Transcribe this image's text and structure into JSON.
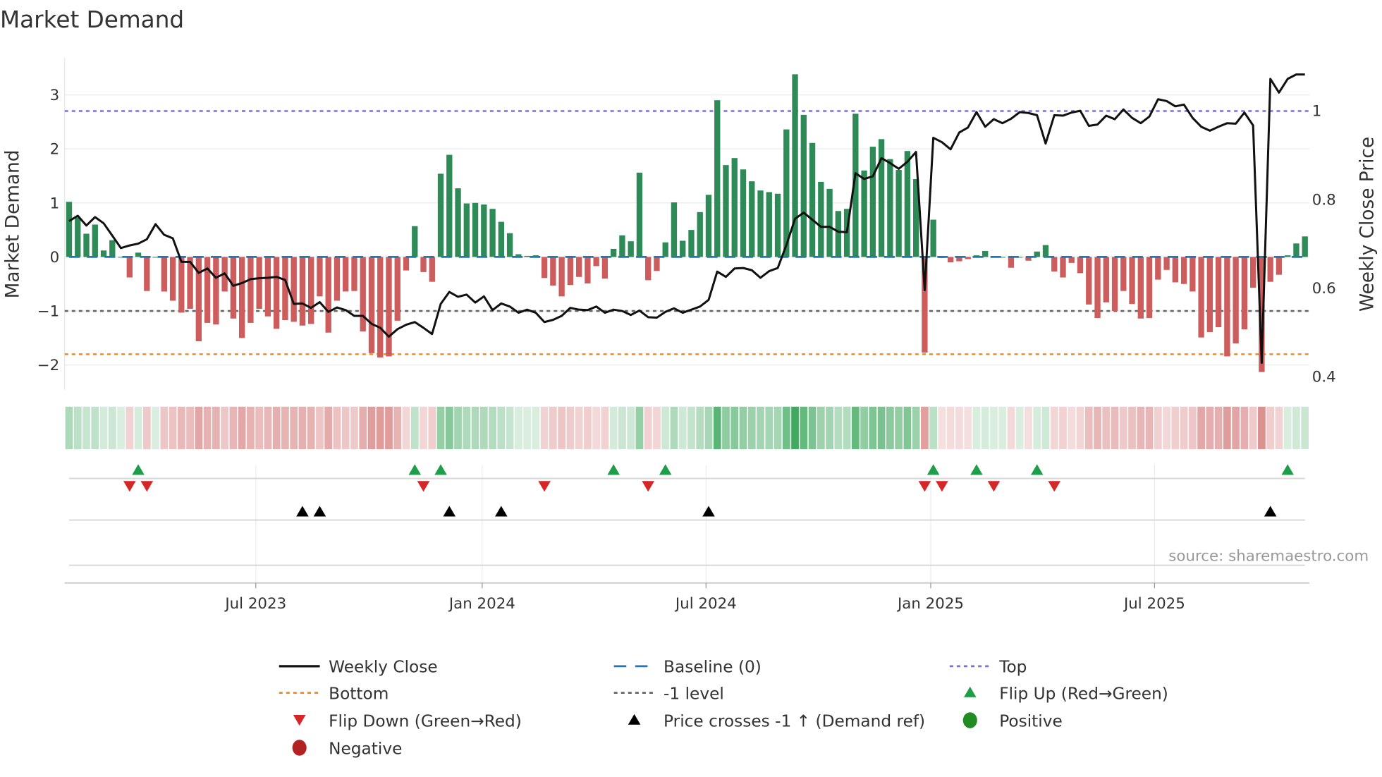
{
  "title": "Market Demand",
  "source": "source: sharemaestro.com",
  "colors": {
    "positive_bar": "#2e8b57",
    "negative_bar": "#cd5c5c",
    "price_line": "#111111",
    "baseline": "#1f77b4",
    "top": "#7b6fd6",
    "bottom": "#f28a1e",
    "minus_one": "#666666",
    "flip_up": "#1e9e48",
    "flip_down": "#d62728",
    "price_cross": "#000000",
    "positive_dot": "#228b22",
    "negative_dot": "#b22222"
  },
  "chart_data": {
    "type": "bar+line",
    "title": "Market Demand",
    "ylabel": "Market Demand",
    "y2label": "Weekly Close Price",
    "ylim": [
      -2.5,
      3.7
    ],
    "y2lim": [
      0.37,
      1.12
    ],
    "yticks": [
      3,
      2,
      1,
      0,
      -1,
      -2
    ],
    "ytick_labels": [
      "3",
      "2",
      "1",
      "0",
      "−1",
      "−2"
    ],
    "y2ticks": [
      1,
      0.8,
      0.6,
      0.4
    ],
    "y2tick_labels": [
      "1",
      "0.8",
      "0.6",
      "0.4"
    ],
    "xticks": [
      {
        "week": 22.6,
        "label": "Jul 2023"
      },
      {
        "week": 48.8,
        "label": "Jan 2024"
      },
      {
        "week": 74.7,
        "label": "Jul 2024"
      },
      {
        "week": 100.7,
        "label": "Jan 2025"
      },
      {
        "week": 126.6,
        "label": "Jul 2025"
      }
    ],
    "levels": {
      "top": 2.7,
      "baseline": 0,
      "minus_one": -1,
      "bottom": -1.8
    },
    "demand": [
      1.02,
      0.73,
      0.43,
      0.6,
      0.12,
      0.31,
      0,
      -0.38,
      0.08,
      -0.63,
      0,
      -0.64,
      -0.81,
      -1.03,
      -0.96,
      -1.56,
      -1.22,
      -1.25,
      -0.64,
      -1.14,
      -1.5,
      -1.22,
      -0.96,
      -1.1,
      -1.33,
      -1.17,
      -1.2,
      -1.27,
      -1.24,
      -0.73,
      -1.4,
      -0.81,
      -0.64,
      -0.63,
      -1.38,
      -1.78,
      -1.86,
      -1.84,
      -1.18,
      -0.25,
      0.57,
      -0.28,
      -0.46,
      1.54,
      1.89,
      1.27,
      0.99,
      1.0,
      0.97,
      0.89,
      0.65,
      0.44,
      0.05,
      0.02,
      0.03,
      -0.39,
      -0.53,
      -0.73,
      -0.52,
      -0.37,
      -0.49,
      -0.17,
      -0.4,
      0.15,
      0.4,
      0.29,
      1.56,
      -0.43,
      -0.26,
      0.27,
      1.01,
      0.3,
      0.5,
      0.83,
      1.15,
      2.9,
      1.7,
      1.83,
      1.62,
      1.4,
      1.23,
      1.2,
      1.17,
      2.36,
      3.38,
      2.63,
      2.11,
      1.39,
      1.26,
      0.85,
      0.89,
      2.65,
      1.6,
      2.04,
      2.18,
      1.81,
      1.61,
      1.96,
      1.44,
      -1.77,
      0.69,
      -0.02,
      -0.1,
      -0.08,
      -0.04,
      0.03,
      0.11,
      0,
      0,
      -0.2,
      0,
      -0.07,
      0.1,
      0.22,
      -0.27,
      -0.38,
      -0.11,
      -0.3,
      -0.88,
      -1.13,
      -0.84,
      -1.0,
      -0.63,
      -0.87,
      -1.14,
      -1.13,
      -0.42,
      -0.24,
      -0.47,
      -0.5,
      -0.64,
      -1.49,
      -1.39,
      -1.3,
      -1.84,
      -1.6,
      -1.34,
      -0.57,
      -2.13,
      -0.46,
      -0.33,
      0.03,
      0.25,
      0.38
    ],
    "weekly_close": [
      0.751,
      0.763,
      0.741,
      0.76,
      0.746,
      0.718,
      0.69,
      0.696,
      0.7,
      0.71,
      0.744,
      0.72,
      0.712,
      0.659,
      0.659,
      0.634,
      0.644,
      0.623,
      0.633,
      0.605,
      0.611,
      0.62,
      0.622,
      0.623,
      0.625,
      0.618,
      0.564,
      0.565,
      0.555,
      0.568,
      0.546,
      0.556,
      0.55,
      0.537,
      0.537,
      0.519,
      0.51,
      0.49,
      0.507,
      0.517,
      0.523,
      0.51,
      0.496,
      0.564,
      0.591,
      0.58,
      0.585,
      0.567,
      0.581,
      0.55,
      0.565,
      0.558,
      0.544,
      0.551,
      0.544,
      0.523,
      0.528,
      0.537,
      0.555,
      0.551,
      0.55,
      0.558,
      0.544,
      0.551,
      0.548,
      0.539,
      0.549,
      0.534,
      0.533,
      0.546,
      0.554,
      0.544,
      0.551,
      0.558,
      0.573,
      0.637,
      0.625,
      0.644,
      0.645,
      0.64,
      0.623,
      0.638,
      0.645,
      0.697,
      0.756,
      0.77,
      0.754,
      0.738,
      0.738,
      0.727,
      0.726,
      0.859,
      0.846,
      0.852,
      0.893,
      0.882,
      0.869,
      0.885,
      0.907,
      0.595,
      0.939,
      0.929,
      0.913,
      0.951,
      0.962,
      0.997,
      0.964,
      0.981,
      0.972,
      0.982,
      0.997,
      0.995,
      0.99,
      0.926,
      0.99,
      0.989,
      0.996,
      1.0,
      0.966,
      0.969,
      0.989,
      0.981,
      1.003,
      0.984,
      0.972,
      0.987,
      1.026,
      1.022,
      1.01,
      1.014,
      0.984,
      0.964,
      0.955,
      0.964,
      0.972,
      0.971,
      0.996,
      0.967,
      0.431,
      1.072,
      1.041,
      1.072,
      1.082,
      1.082
    ],
    "flip_up_weeks": [
      9,
      41,
      44,
      64,
      70,
      101,
      106,
      113,
      142
    ],
    "flip_down_weeks": [
      8,
      10,
      42,
      56,
      68,
      100,
      102,
      108,
      115
    ],
    "price_cross_weeks": [
      28,
      30,
      45,
      51,
      75,
      140
    ],
    "legend": {
      "placement": "bottom",
      "items": [
        {
          "key": "weekly_close",
          "label": "Weekly Close",
          "style": "line"
        },
        {
          "key": "baseline",
          "label": "Baseline (0)",
          "style": "dash"
        },
        {
          "key": "top",
          "label": "Top",
          "style": "dot"
        },
        {
          "key": "bottom",
          "label": "Bottom",
          "style": "dot"
        },
        {
          "key": "minus_one",
          "label": "-1 level",
          "style": "dot"
        },
        {
          "key": "flip_up",
          "label": "Flip Up (Red→Green)",
          "style": "tri-up"
        },
        {
          "key": "flip_down",
          "label": "Flip Down (Green→Red)",
          "style": "tri-down"
        },
        {
          "key": "price_cross",
          "label": "Price crosses -1 ↑ (Demand ref)",
          "style": "tri-up"
        },
        {
          "key": "positive_dot",
          "label": "Positive",
          "style": "dot-marker"
        },
        {
          "key": "negative_dot",
          "label": "Negative",
          "style": "dot-marker"
        }
      ]
    }
  }
}
